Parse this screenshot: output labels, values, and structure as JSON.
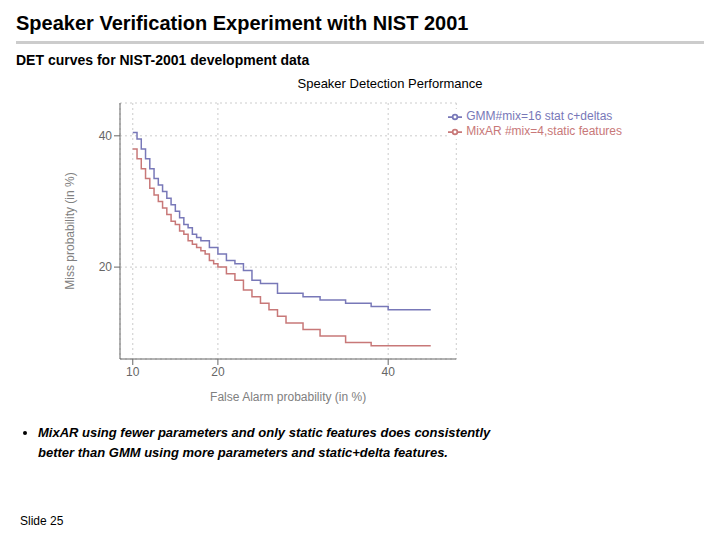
{
  "chart_data": {
    "type": "step",
    "title": "Speaker Verification Experiment with NIST 2001",
    "subtitle": "DET curves for NIST-2001 development data",
    "annotations": [
      "Speaker Detection Performance",
      "MixAR using fewer parameters and only static features does consistently",
      "better than GMM using more parameters and static+delta features.",
      "Slide 25"
    ],
    "xlabel": "False Alarm probability (in %)",
    "ylabel": "Miss probability (in %)",
    "series": [
      {
        "name": "MixAR #mix=4,static features",
        "color": "#c87878",
        "x": [
          10.0,
          10.5,
          11.0,
          11.5,
          12.0,
          12.5,
          13.0,
          13.5,
          14.0,
          14.5,
          15.0,
          15.5,
          16.0,
          16.5,
          17.0,
          17.5,
          18.0,
          18.5,
          19.0,
          19.5,
          20.0,
          21.0,
          22.0,
          23.0,
          24.0,
          25.0,
          26.0,
          27.0,
          28.0,
          30.0,
          32.0,
          35.0,
          38.0,
          40.0,
          45.0
        ],
        "values": [
          38.0,
          36.5,
          35.0,
          33.5,
          32.0,
          31.0,
          30.0,
          29.0,
          28.0,
          27.0,
          26.5,
          25.5,
          25.0,
          24.0,
          23.5,
          23.0,
          22.5,
          22.0,
          21.0,
          20.5,
          20.0,
          19.0,
          18.0,
          16.5,
          15.5,
          14.5,
          13.5,
          12.5,
          11.5,
          10.5,
          9.5,
          8.5,
          8.0,
          8.0,
          8.0
        ]
      },
      {
        "name": "GMM#mix=16 stat c+deltas",
        "color": "#7878b8",
        "x": [
          10.0,
          10.5,
          11.0,
          11.5,
          12.0,
          12.5,
          13.0,
          13.5,
          14.0,
          14.5,
          15.0,
          15.5,
          16.0,
          16.5,
          17.0,
          17.5,
          18.0,
          19.0,
          20.0,
          21.0,
          22.0,
          23.0,
          24.0,
          25.0,
          27.0,
          30.0,
          32.0,
          35.0,
          38.0,
          40.0,
          45.0
        ],
        "values": [
          40.5,
          39.5,
          38.0,
          36.5,
          35.0,
          33.5,
          32.5,
          31.5,
          30.5,
          29.5,
          28.5,
          27.5,
          26.5,
          26.0,
          25.0,
          24.5,
          24.0,
          23.0,
          22.0,
          21.0,
          20.5,
          19.5,
          18.0,
          17.5,
          16.0,
          15.5,
          15.0,
          14.5,
          14.0,
          13.5,
          13.5
        ]
      }
    ],
    "xlim": [
      8.5,
      48
    ],
    "ylim": [
      6,
      45
    ],
    "xticks": [
      10,
      20,
      40
    ],
    "yticks": [
      20,
      40
    ],
    "grid": true,
    "legend": "upper right"
  }
}
